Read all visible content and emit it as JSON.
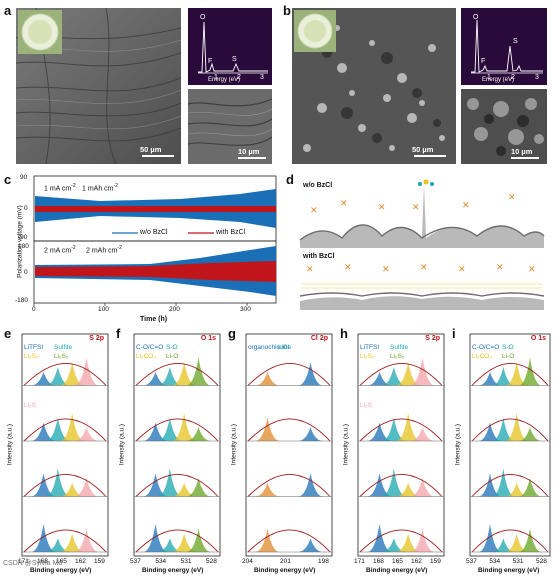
{
  "panels": {
    "a": {
      "label": "a",
      "main_scale": "50 µm",
      "inset_scale": "10 µm",
      "eds": {
        "peaks": [
          "O",
          "F",
          "S"
        ],
        "ticks": [
          "1",
          "2",
          "3"
        ],
        "xlabel": "Energy (eV)"
      }
    },
    "b": {
      "label": "b",
      "main_scale": "50 µm",
      "inset_scale": "10 µm",
      "eds": {
        "peaks": [
          "O",
          "F",
          "S"
        ],
        "ticks": [
          "1",
          "2",
          "3"
        ],
        "xlabel": "Energy (eV)"
      }
    },
    "c": {
      "label": "c",
      "top_condition": {
        "current": "1 mA cm",
        "current_sup": "-2",
        "capacity": "1 mAh cm",
        "capacity_sup": "-2"
      },
      "bottom_condition": {
        "current": "2 mA cm",
        "current_sup": "-2",
        "capacity": "2 mAh cm",
        "capacity_sup": "-2"
      },
      "legend": [
        "w/o BzCl",
        "with BzCl"
      ],
      "ylabel": "Polarization voltage (mV)",
      "xlabel": "Time (h)",
      "yticks_top": [
        "90",
        "0",
        "-90"
      ],
      "yticks_bottom": [
        "180",
        "0",
        "-180"
      ],
      "xticks": [
        "0",
        "100",
        "200",
        "300"
      ]
    },
    "d": {
      "label": "d",
      "top_title": "w/o BzCl",
      "bottom_title": "with BzCl"
    },
    "e": {
      "label": "e",
      "title": "S 2p",
      "labels": [
        "LiTFSI",
        "Sulfite",
        "Li₂S₂",
        "Li₂S₂",
        "Li₂S"
      ],
      "ticks": [
        "171",
        "168",
        "165",
        "162",
        "159"
      ]
    },
    "f": {
      "label": "f",
      "title": "O 1s",
      "labels": [
        "C-O/C=O",
        "S-O",
        "Li₂CO₃",
        "Li-O"
      ],
      "ticks": [
        "537",
        "534",
        "531",
        "528"
      ]
    },
    "g": {
      "label": "g",
      "title": "Cl 2p",
      "labels": [
        "organochlorine",
        "LiCl"
      ],
      "ticks": [
        "204",
        "201",
        "198"
      ]
    },
    "h": {
      "label": "h",
      "title": "S 2p",
      "labels": [
        "LiTFSI",
        "Sulfite",
        "Li₂S₂",
        "Li₂S₂",
        "Li₂S"
      ],
      "ticks": [
        "171",
        "168",
        "165",
        "162",
        "159"
      ]
    },
    "i": {
      "label": "i",
      "title": "O 1s",
      "labels": [
        "C-O/C=O",
        "S-O",
        "Li₂CO₃",
        "Li-O"
      ],
      "ticks": [
        "537",
        "534",
        "531",
        "528"
      ]
    }
  },
  "xps_axis": {
    "ylabel": "Intensity (a.u.)",
    "xlabel": "Binding energy (eV)"
  },
  "colors": {
    "without": "#1b6fb6",
    "with": "#c0161b",
    "sulfite": "#1ba7b0",
    "organo": "#e08a2c",
    "lio": "#66a31e",
    "li2s": "#e5c21f",
    "li2s_pink": "#f1a1a8",
    "curve": "#9b1b1b"
  },
  "watermark": "CSDN @Sylvia Ma"
}
